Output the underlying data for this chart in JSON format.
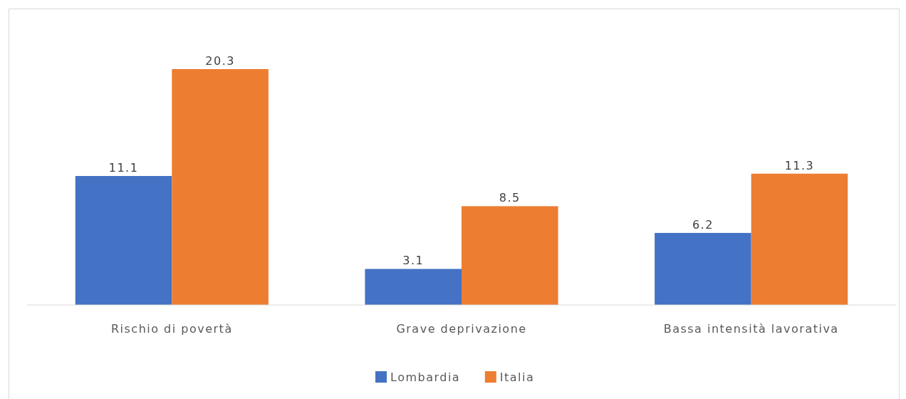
{
  "chart_data": {
    "type": "bar",
    "categories": [
      "Rischio di povertà",
      "Grave deprivazione",
      "Bassa intensità lavorativa"
    ],
    "series": [
      {
        "name": "Lombardia",
        "color": "#4472c4",
        "values": [
          11.1,
          3.1,
          6.2
        ]
      },
      {
        "name": "Italia",
        "color": "#ed7d31",
        "values": [
          20.3,
          8.5,
          11.3
        ]
      }
    ],
    "data_labels": true,
    "legend": "bottom",
    "tick_labels": "x"
  }
}
